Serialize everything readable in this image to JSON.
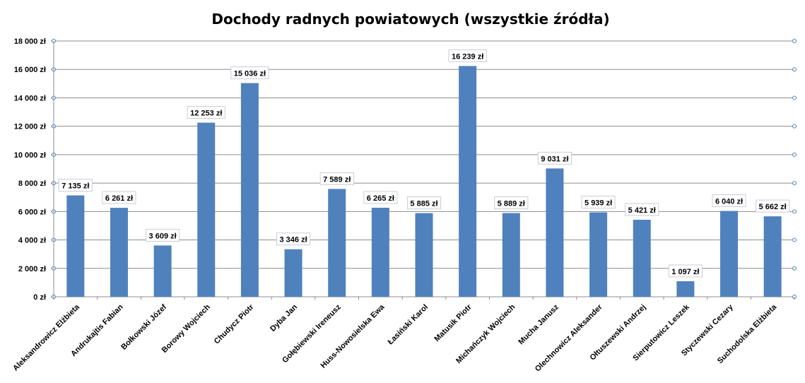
{
  "chart_data": {
    "type": "bar",
    "title": "Dochody radnych powiatowych (wszystkie źródła)",
    "xlabel": "",
    "ylabel": "",
    "ylim": [
      0,
      18000
    ],
    "y_ticks": [
      "0 zł",
      "2 000 zł",
      "4 000 zł",
      "6 000 zł",
      "8 000 zł",
      "10 000 zł",
      "12 000 zł",
      "14 000 zł",
      "16 000 zł",
      "18 000 zł"
    ],
    "grid": true,
    "legend": "none",
    "bar_color": "#4f81bd",
    "categories": [
      "Aleksandrowicz Elżbieta",
      "Andrukajtis Fabian",
      "Bołkowski Józef",
      "Borowy Wojciech",
      "Chudycz Piotr",
      "Dyba Jan",
      "Gołębiewski Ireneusz",
      "Huss-Nowosielska Ewa",
      "Łasiński Karol",
      "Matusik Piotr",
      "Michańczyk Wojciech",
      "Mucha Janusz",
      "Olechnowicz Aleksander",
      "Ołtuszewski Andrzej",
      "Sierputowicz Leszek",
      "Styczewski Cezary",
      "Suchodolska Elżbieta"
    ],
    "values": [
      7135,
      6261,
      3609,
      12253,
      15036,
      3346,
      7589,
      6265,
      5885,
      16239,
      5889,
      9031,
      5939,
      5421,
      1097,
      6040,
      5662
    ],
    "data_labels": [
      "7 135 zł",
      "6 261 zł",
      "3 609 zł",
      "12 253 zł",
      "15 036 zł",
      "3 346 zł",
      "7 589 zł",
      "6 265 zł",
      "5 885 zł",
      "16 239 zł",
      "5 889 zł",
      "9 031 zł",
      "5 939 zł",
      "5 421 zł",
      "1 097 zł",
      "6 040 zł",
      "5 662 zł"
    ]
  }
}
